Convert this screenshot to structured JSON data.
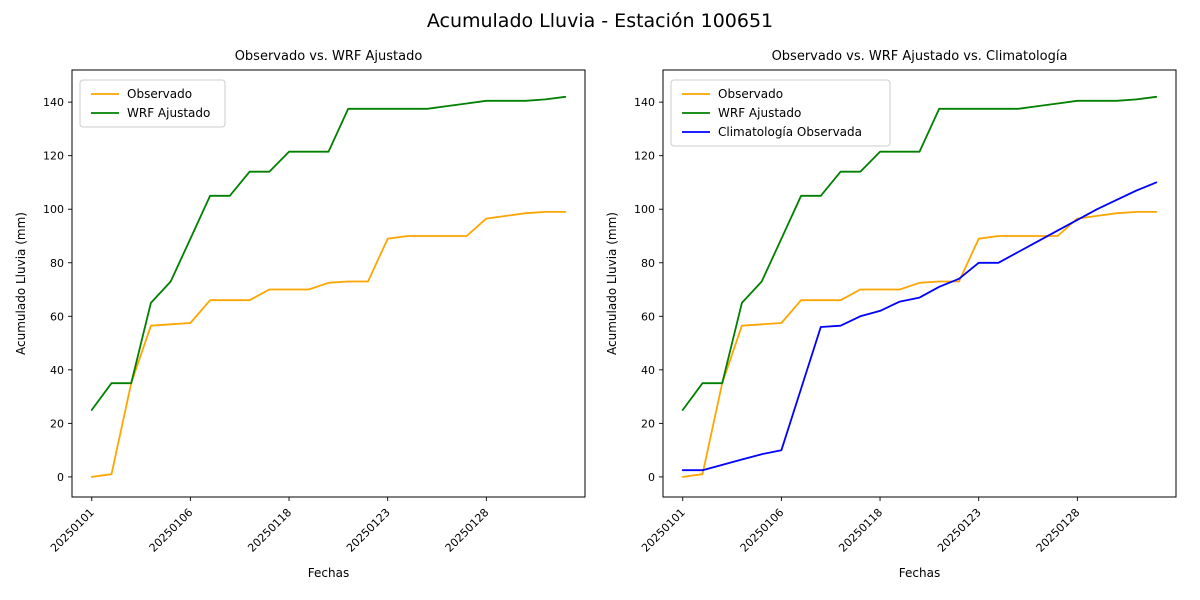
{
  "figure": {
    "suptitle": "Acumulado Lluvia - Estación 100651"
  },
  "chart_data": [
    {
      "type": "line",
      "title": "Observado vs. WRF Ajustado",
      "xlabel": "Fechas",
      "ylabel": "Acumulado Lluvia (mm)",
      "n_points": 25,
      "xlim": [
        -1,
        25
      ],
      "ylim": [
        -7.5,
        152
      ],
      "yticks": [
        0,
        20,
        40,
        60,
        80,
        100,
        120,
        140
      ],
      "xticks": [
        {
          "pos": 0,
          "label": "20250101"
        },
        {
          "pos": 5,
          "label": "20250106"
        },
        {
          "pos": 10,
          "label": "20250118"
        },
        {
          "pos": 15,
          "label": "20250123"
        },
        {
          "pos": 20,
          "label": "20250128"
        }
      ],
      "grid": false,
      "legend_position": "upper-left",
      "series": [
        {
          "name": "Observado",
          "color": "#FFA500",
          "values": [
            0,
            1,
            35,
            56.5,
            57,
            57.5,
            66,
            66,
            66,
            70,
            70,
            70,
            72.5,
            73,
            73,
            89,
            90,
            90,
            90,
            90,
            96.5,
            97.5,
            98.5,
            99,
            99
          ]
        },
        {
          "name": "WRF Ajustado",
          "color": "#008000",
          "values": [
            25,
            35,
            35,
            65,
            73,
            89,
            105,
            105,
            114,
            114,
            121.5,
            121.5,
            121.5,
            137.5,
            137.5,
            137.5,
            137.5,
            137.5,
            138.5,
            139.5,
            140.5,
            140.5,
            140.5,
            141,
            142
          ]
        }
      ]
    },
    {
      "type": "line",
      "title": "Observado vs. WRF Ajustado vs. Climatología",
      "xlabel": "Fechas",
      "ylabel": "Acumulado Lluvia (mm)",
      "n_points": 25,
      "xlim": [
        -1,
        25
      ],
      "ylim": [
        -7.5,
        152
      ],
      "yticks": [
        0,
        20,
        40,
        60,
        80,
        100,
        120,
        140
      ],
      "xticks": [
        {
          "pos": 0,
          "label": "20250101"
        },
        {
          "pos": 5,
          "label": "20250106"
        },
        {
          "pos": 10,
          "label": "20250118"
        },
        {
          "pos": 15,
          "label": "20250123"
        },
        {
          "pos": 20,
          "label": "20250128"
        }
      ],
      "grid": false,
      "legend_position": "upper-left",
      "series": [
        {
          "name": "Observado",
          "color": "#FFA500",
          "values": [
            0,
            1,
            35,
            56.5,
            57,
            57.5,
            66,
            66,
            66,
            70,
            70,
            70,
            72.5,
            73,
            73,
            89,
            90,
            90,
            90,
            90,
            96.5,
            97.5,
            98.5,
            99,
            99
          ]
        },
        {
          "name": "WRF Ajustado",
          "color": "#008000",
          "values": [
            25,
            35,
            35,
            65,
            73,
            89,
            105,
            105,
            114,
            114,
            121.5,
            121.5,
            121.5,
            137.5,
            137.5,
            137.5,
            137.5,
            137.5,
            138.5,
            139.5,
            140.5,
            140.5,
            140.5,
            141,
            142
          ]
        },
        {
          "name": "Climatología Observada",
          "color": "#0000FF",
          "values": [
            2.5,
            2.5,
            4.5,
            6.5,
            8.5,
            10,
            33,
            56,
            56.5,
            60,
            62,
            65.5,
            67,
            71,
            74,
            80,
            80,
            84,
            88,
            92,
            96,
            100,
            103.5,
            107,
            110
          ]
        }
      ]
    }
  ]
}
